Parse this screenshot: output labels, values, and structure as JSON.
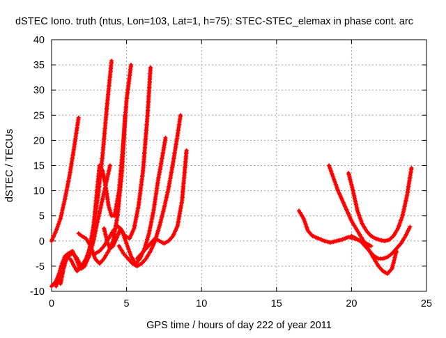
{
  "chart_data": {
    "type": "scatter",
    "title": "dSTEC Iono. truth (ntus, Lon=103, Lat=1, h=75): STEC-STEC_elemax in phase cont. arc",
    "xlabel": "GPS time / hours of day 222 of year 2011",
    "ylabel": "dSTEC  / TECUs",
    "xlim": [
      0,
      25
    ],
    "ylim": [
      -10,
      40
    ],
    "x_ticks": [
      0,
      5,
      10,
      15,
      20,
      25
    ],
    "y_ticks": [
      -10,
      -5,
      0,
      5,
      10,
      15,
      20,
      25,
      30,
      35,
      40
    ],
    "grid": true,
    "marker": "plus",
    "color": "#ff0000",
    "series": [
      {
        "x": [
          0.0,
          0.3,
          0.6,
          0.9,
          1.2,
          1.5,
          1.8
        ],
        "y": [
          0.0,
          2.0,
          4.5,
          8.5,
          13.0,
          18.5,
          24.5
        ]
      },
      {
        "x": [
          0.0,
          0.3,
          0.5,
          0.7,
          0.9,
          1.1,
          1.4,
          1.7,
          1.9,
          2.2,
          2.5,
          2.8,
          3.1,
          3.4,
          3.7,
          4.0
        ],
        "y": [
          -9.0,
          -8.0,
          -6.5,
          -4.5,
          -3.0,
          -2.5,
          -2.0,
          -4.0,
          -5.5,
          -5.0,
          -2.0,
          3.0,
          9.0,
          17.0,
          27.0,
          35.8
        ]
      },
      {
        "x": [
          0.6,
          0.8,
          1.0,
          1.2,
          1.4,
          1.6,
          1.8,
          2.0,
          2.2,
          2.5,
          2.8,
          3.0,
          3.3,
          3.6,
          3.9
        ],
        "y": [
          -8.5,
          -5.5,
          -3.5,
          -2.8,
          -2.5,
          -3.0,
          -4.0,
          -5.5,
          -5.0,
          -3.0,
          0.0,
          3.0,
          7.0,
          11.0,
          15.0
        ]
      },
      {
        "x": [
          0.3,
          0.5,
          0.7,
          0.9,
          1.1,
          1.3,
          1.5,
          1.7,
          2.0,
          2.3,
          2.6,
          2.8,
          3.0,
          3.2,
          3.4,
          3.6,
          3.8,
          4.0,
          4.2,
          4.5,
          4.8,
          5.0,
          5.3
        ],
        "y": [
          -9.0,
          -7.0,
          -4.5,
          -3.5,
          -3.2,
          -3.8,
          -5.0,
          -6.0,
          -5.0,
          -3.5,
          -1.0,
          3.0,
          9.0,
          15.0,
          14.0,
          11.0,
          7.0,
          5.0,
          5.0,
          10.0,
          20.0,
          28.0,
          35.0
        ]
      },
      {
        "x": [
          1.8,
          2.0,
          2.3,
          2.6,
          2.9,
          3.2,
          3.5,
          3.8,
          4.1,
          4.4,
          4.7,
          4.9
        ],
        "y": [
          1.5,
          1.0,
          0.5,
          -1.0,
          -3.5,
          -4.5,
          -3.5,
          -2.0,
          0.0,
          5.0,
          14.0,
          25.0
        ]
      },
      {
        "x": [
          3.5,
          3.7,
          3.9,
          4.1,
          4.4,
          4.6,
          4.9,
          5.2,
          5.5,
          5.8,
          6.1,
          6.4,
          6.6
        ],
        "y": [
          2.5,
          0.0,
          -1.5,
          -1.0,
          1.0,
          2.5,
          1.0,
          0.5,
          2.5,
          7.0,
          14.0,
          25.0,
          34.5
        ]
      },
      {
        "x": [
          2.9,
          3.2,
          3.5,
          3.8,
          4.1,
          4.4,
          4.7,
          5.0,
          5.3,
          5.6,
          5.9,
          6.2,
          6.5,
          6.8,
          7.1,
          7.4,
          7.6
        ],
        "y": [
          -2.5,
          -2.0,
          -1.0,
          0.5,
          2.0,
          3.0,
          2.0,
          -0.5,
          -3.0,
          -4.5,
          -3.5,
          -1.5,
          1.5,
          6.0,
          12.0,
          17.0,
          20.5
        ]
      },
      {
        "x": [
          4.5,
          4.8,
          5.1,
          5.4,
          5.7,
          6.0,
          6.3,
          6.6,
          6.9,
          7.2,
          7.5,
          7.8,
          8.1,
          8.4,
          8.6
        ],
        "y": [
          -1.0,
          -2.5,
          -3.5,
          -4.5,
          -5.0,
          -4.5,
          -3.5,
          -2.0,
          0.0,
          3.0,
          6.5,
          10.5,
          15.5,
          21.0,
          25.0
        ]
      },
      {
        "x": [
          5.7,
          6.0,
          6.3,
          6.6,
          6.9,
          7.2,
          7.5,
          7.8,
          8.1,
          8.4,
          8.7,
          9.0
        ],
        "y": [
          -3.5,
          -2.5,
          -1.5,
          -0.5,
          0.5,
          0.0,
          -0.5,
          0.0,
          1.0,
          3.0,
          8.0,
          18.0
        ]
      },
      {
        "x": [
          16.5,
          16.8,
          17.1,
          17.4,
          17.8,
          18.2,
          18.6,
          19.0,
          19.4,
          19.8,
          20.2,
          20.6,
          21.0,
          21.3
        ],
        "y": [
          6.0,
          4.5,
          2.0,
          1.0,
          0.5,
          0.0,
          -0.3,
          0.0,
          0.3,
          0.8,
          0.5,
          0.0,
          -0.5,
          -1.0
        ]
      },
      {
        "x": [
          18.5,
          18.8,
          19.1,
          19.4,
          19.7,
          20.0,
          20.3,
          20.6,
          20.9,
          21.2,
          21.5,
          21.8,
          22.1,
          22.4,
          22.7,
          23.0
        ],
        "y": [
          15.0,
          12.5,
          10.0,
          8.0,
          6.0,
          4.0,
          2.5,
          1.0,
          -0.5,
          -2.0,
          -3.5,
          -5.0,
          -6.0,
          -6.5,
          -5.5,
          -2.0
        ]
      },
      {
        "x": [
          19.8,
          20.1,
          20.4,
          20.7,
          21.0,
          21.3,
          21.6,
          21.9,
          22.2,
          22.5,
          22.8,
          23.1,
          23.4,
          23.7,
          24.0
        ],
        "y": [
          13.5,
          10.0,
          6.0,
          3.5,
          2.0,
          1.0,
          0.5,
          0.2,
          0.0,
          0.2,
          1.0,
          2.5,
          5.0,
          9.0,
          14.5
        ]
      },
      {
        "x": [
          20.0,
          20.3,
          20.6,
          20.9,
          21.2,
          21.5,
          21.8,
          22.1,
          22.4,
          22.7,
          23.0,
          23.3,
          23.6,
          23.9
        ],
        "y": [
          1.0,
          0.5,
          0.0,
          -1.0,
          -2.0,
          -3.0,
          -3.5,
          -3.5,
          -3.2,
          -2.5,
          -1.5,
          -0.5,
          1.0,
          2.8
        ]
      }
    ]
  }
}
